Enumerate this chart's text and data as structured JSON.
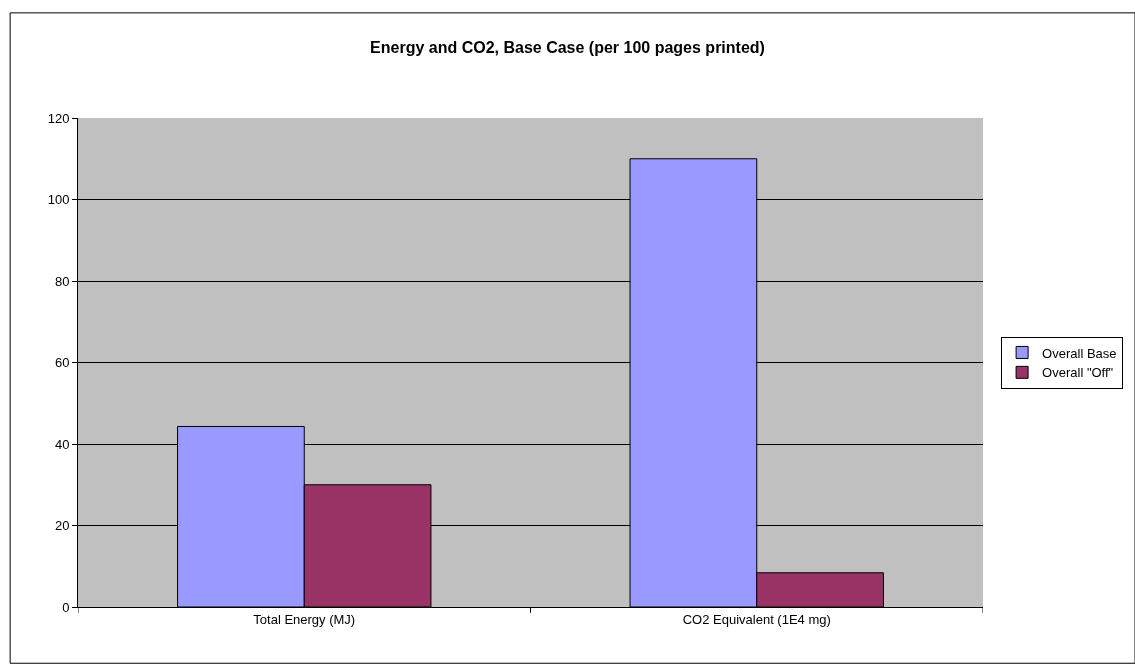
{
  "chart_data": {
    "type": "bar",
    "title": "Energy and CO2, Base Case (per 100 pages printed)",
    "categories": [
      "Total Energy (MJ)",
      "CO2 Equivalent (1E4 mg)"
    ],
    "series": [
      {
        "name": "Overall Base",
        "color": "#9999ff",
        "values": [
          44.3,
          110
        ]
      },
      {
        "name": "Overall \"Off\"",
        "color": "#993366",
        "values": [
          30,
          8.4
        ]
      }
    ],
    "ylim": [
      0,
      120
    ],
    "yticks": [
      0,
      20,
      40,
      60,
      80,
      100,
      120
    ],
    "grid": "y",
    "legend": "right"
  }
}
